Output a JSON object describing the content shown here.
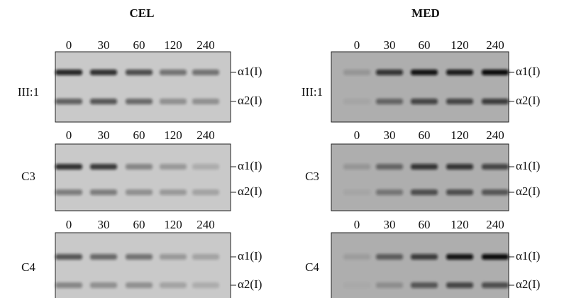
{
  "panels": [
    {
      "title": "CEL",
      "blots": [
        {
          "label": "III:1",
          "lanes": [
            0,
            30,
            60,
            120,
            240
          ],
          "bands": [
            "α1(I)",
            "α2(I)"
          ]
        },
        {
          "label": "C3",
          "lanes": [
            0,
            30,
            60,
            120,
            240
          ],
          "bands": [
            "α1(I)",
            "α2(I)"
          ]
        },
        {
          "label": "C4",
          "lanes": [
            0,
            30,
            60,
            120,
            240
          ],
          "bands": [
            "α1(I)",
            "α2(I)"
          ]
        }
      ]
    },
    {
      "title": "MED",
      "blots": [
        {
          "label": "III:1",
          "lanes": [
            0,
            30,
            60,
            120,
            240
          ],
          "bands": [
            "α1(I)",
            "α2(I)"
          ]
        },
        {
          "label": "C3",
          "lanes": [
            0,
            30,
            60,
            120,
            240
          ],
          "bands": [
            "α1(I)",
            "α2(I)"
          ]
        },
        {
          "label": "C4",
          "lanes": [
            0,
            30,
            60,
            120,
            240
          ],
          "bands": [
            "α1(I)",
            "α2(I)"
          ]
        }
      ]
    }
  ]
}
